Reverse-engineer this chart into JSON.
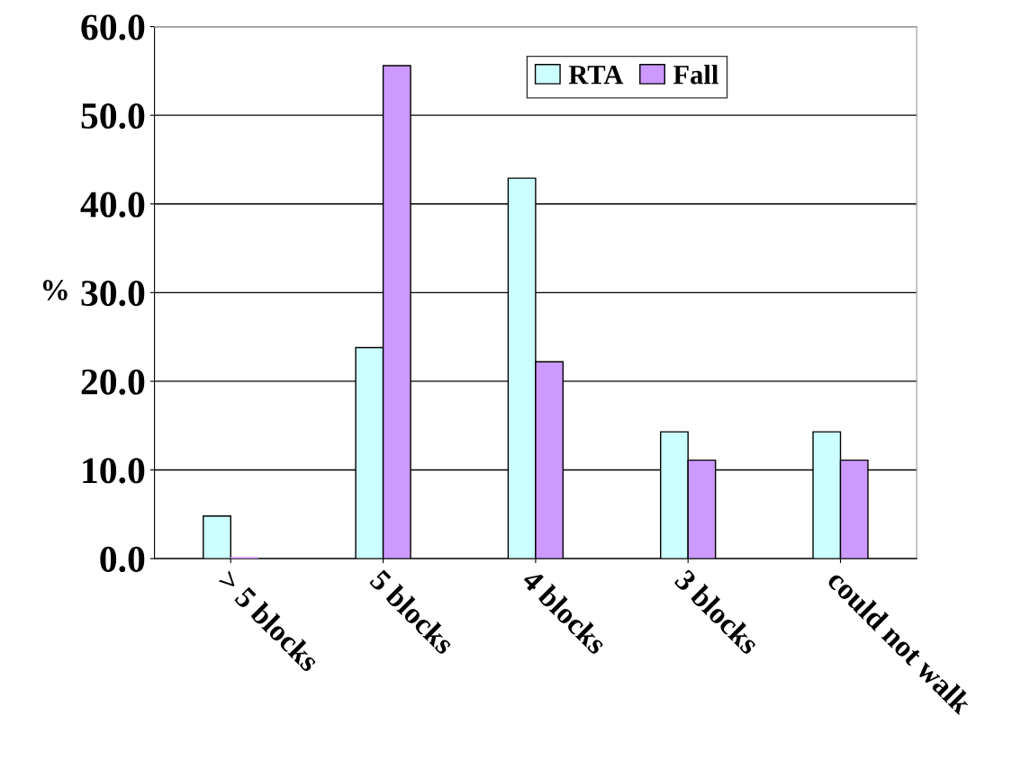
{
  "chart_data": {
    "type": "bar",
    "ylabel": "%",
    "categories": [
      "> 5 blocks",
      "5 blocks",
      "4 blocks",
      "3 blocks",
      "could not walk"
    ],
    "series": [
      {
        "name": "RTA",
        "color": "#ccffff",
        "values": [
          4.8,
          23.8,
          42.9,
          14.3,
          14.3
        ]
      },
      {
        "name": "Fall",
        "color": "#cc99ff",
        "values": [
          0,
          55.6,
          22.2,
          11.1,
          11.1
        ]
      }
    ],
    "ylim": [
      0,
      60
    ],
    "yticks": [
      {
        "value": 0,
        "label": "0.0"
      },
      {
        "value": 10,
        "label": "10.0"
      },
      {
        "value": 20,
        "label": "20.0"
      },
      {
        "value": 30,
        "label": "30.0"
      },
      {
        "value": 40,
        "label": "40.0"
      },
      {
        "value": 50,
        "label": "50.0"
      },
      {
        "value": 60,
        "label": "60.0"
      }
    ],
    "grid": "y",
    "legend": "top"
  }
}
